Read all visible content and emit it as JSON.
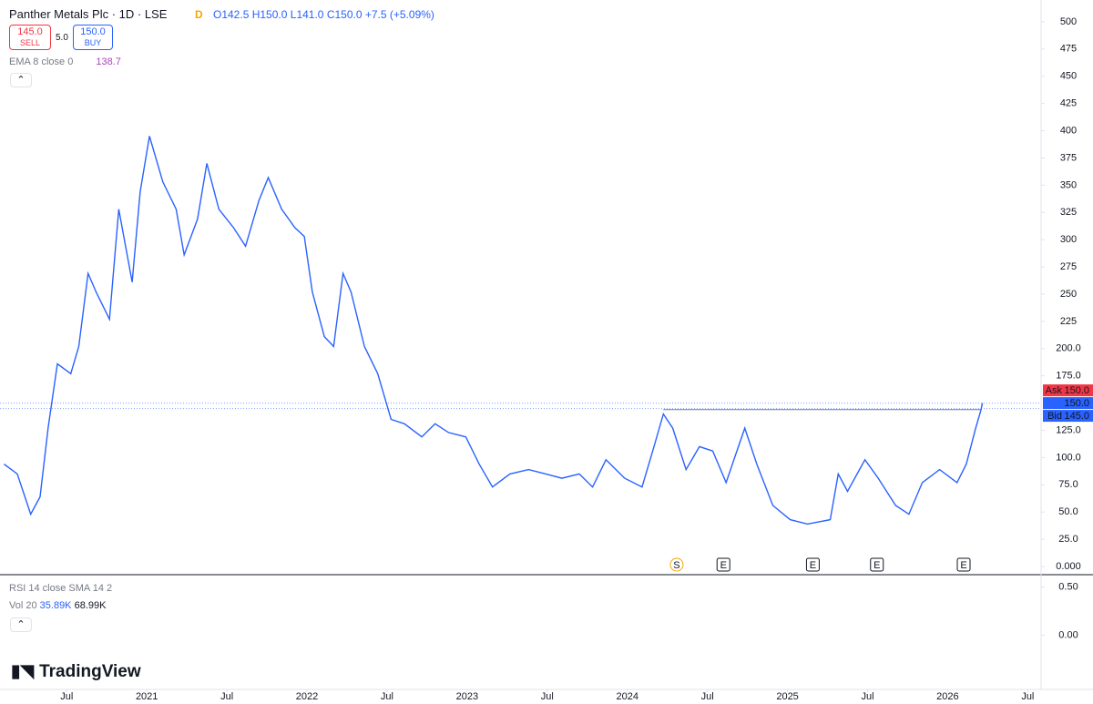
{
  "chart_data": {
    "type": "line",
    "symbol": {
      "name": "Panther Metals Plc · 1D · LSE",
      "badge": "D"
    },
    "ohlc": [
      "O142.5",
      "H150.0",
      "L141.0",
      "C150.0",
      "+7.5 (+5.09%)"
    ],
    "trade": {
      "sell_price": "145.0",
      "sell": "SELL",
      "spread": "5.0",
      "buy_price": "150.0",
      "buy": "BUY"
    },
    "indicators": {
      "ema": "EMA 8 close 0",
      "ema_value": "138.7",
      "rsi": "RSI 14 close SMA 14 2",
      "vol": "Vol 20",
      "vol_values": [
        "35.89K",
        "68.99K"
      ]
    },
    "brand": "TradingView",
    "x": [
      1.3,
      2.3,
      3.3,
      4.0,
      4.6,
      5.3,
      6.3,
      6.9,
      7.6,
      8.2,
      9.2,
      9.9,
      10.9,
      11.5,
      12.2,
      13.2,
      14.2,
      14.8,
      15.8,
      16.5,
      17.4,
      18.5,
      19.4,
      20.4,
      21.1,
      22.1,
      23.1,
      23.8,
      24.4,
      25.3,
      26.0,
      26.7,
      27.3,
      28.3,
      29.3,
      30.3,
      31.3,
      32.6,
      33.6,
      34.6,
      35.9,
      36.9,
      37.9,
      39.2,
      40.6,
      41.9,
      43.1,
      44.4,
      45.4,
      46.4,
      47.8,
      49.1,
      50.0,
      50.7,
      51.4,
      52.4,
      53.4,
      54.4,
      55.4,
      56.1,
      56.8,
      57.7,
      58.9,
      60.2,
      61.5,
      63.2,
      63.8,
      64.5,
      65.8,
      66.8,
      68.1,
      69.1,
      70.1,
      71.4,
      72.7,
      73.4,
      74.1,
      74.5,
      74.6
    ],
    "series": [
      {
        "color": "#2962ff",
        "values": [
          94,
          85,
          48,
          64,
          127,
          186,
          177,
          202,
          269,
          252,
          227,
          328,
          261,
          344,
          395,
          353,
          328,
          286,
          319,
          370,
          328,
          311,
          294,
          336,
          357,
          328,
          311,
          303,
          252,
          211,
          202,
          269,
          252,
          202,
          177,
          135,
          131,
          119,
          131,
          123,
          119,
          94,
          73,
          85,
          89,
          85,
          81,
          85,
          73,
          98,
          81,
          73,
          110,
          140,
          127,
          89,
          110,
          106,
          77,
          102,
          127,
          94,
          56,
          43,
          39,
          43,
          85,
          69,
          98,
          81,
          56,
          48,
          77,
          89,
          77,
          94,
          127,
          144,
          150
        ]
      }
    ],
    "xlim": [
      1,
      79
    ],
    "xticks": [
      {
        "value": 6,
        "label": "Jul"
      },
      {
        "value": 12,
        "label": "2021"
      },
      {
        "value": 18,
        "label": "Jul"
      },
      {
        "value": 24,
        "label": "2022"
      },
      {
        "value": 30,
        "label": "Jul"
      },
      {
        "value": 36,
        "label": "2023"
      },
      {
        "value": 42,
        "label": "Jul"
      },
      {
        "value": 48,
        "label": "2024"
      },
      {
        "value": 54,
        "label": "Jul"
      },
      {
        "value": 60,
        "label": "2025"
      },
      {
        "value": 66,
        "label": "Jul"
      },
      {
        "value": 72,
        "label": "2026"
      },
      {
        "value": 78,
        "label": "Jul"
      }
    ],
    "ylim": [
      -7.5,
      520
    ],
    "yticks": [
      {
        "value": 0,
        "label": "0.000"
      },
      {
        "value": 25,
        "label": "25.0"
      },
      {
        "value": 50,
        "label": "50.0"
      },
      {
        "value": 75,
        "label": "75.0"
      },
      {
        "value": 100,
        "label": "100.0"
      },
      {
        "value": 125,
        "label": "125.0"
      },
      {
        "value": 175,
        "label": "175.0"
      },
      {
        "value": 200,
        "label": "200.0"
      },
      225,
      250,
      275,
      300,
      325,
      350,
      375,
      400,
      425,
      450,
      475,
      500
    ],
    "level_line": {
      "value": 144,
      "from": 50.7,
      "to": 74.5
    },
    "price_tags": [
      {
        "name": "Ask",
        "value": 150,
        "label": "150.0",
        "color": "#f23645"
      },
      {
        "value": 150,
        "label": "150.0",
        "color": "#2962ff"
      },
      {
        "name": "Bid",
        "value": 145,
        "label": "145.0",
        "color": "#2962ff"
      }
    ],
    "events": [
      {
        "label": "S",
        "x": 51.7
      },
      {
        "label": "E",
        "x": 55.2
      },
      {
        "label": "E",
        "x": 61.9
      },
      {
        "label": "E",
        "x": 66.7
      },
      {
        "label": "E",
        "x": 73.2
      }
    ],
    "volume_pane": {
      "ylim": [
        -0.56,
        0.6
      ],
      "yticks": [
        {
          "value": 0.5,
          "label": "0.50"
        },
        {
          "value": 0,
          "label": "0.00"
        }
      ]
    }
  }
}
